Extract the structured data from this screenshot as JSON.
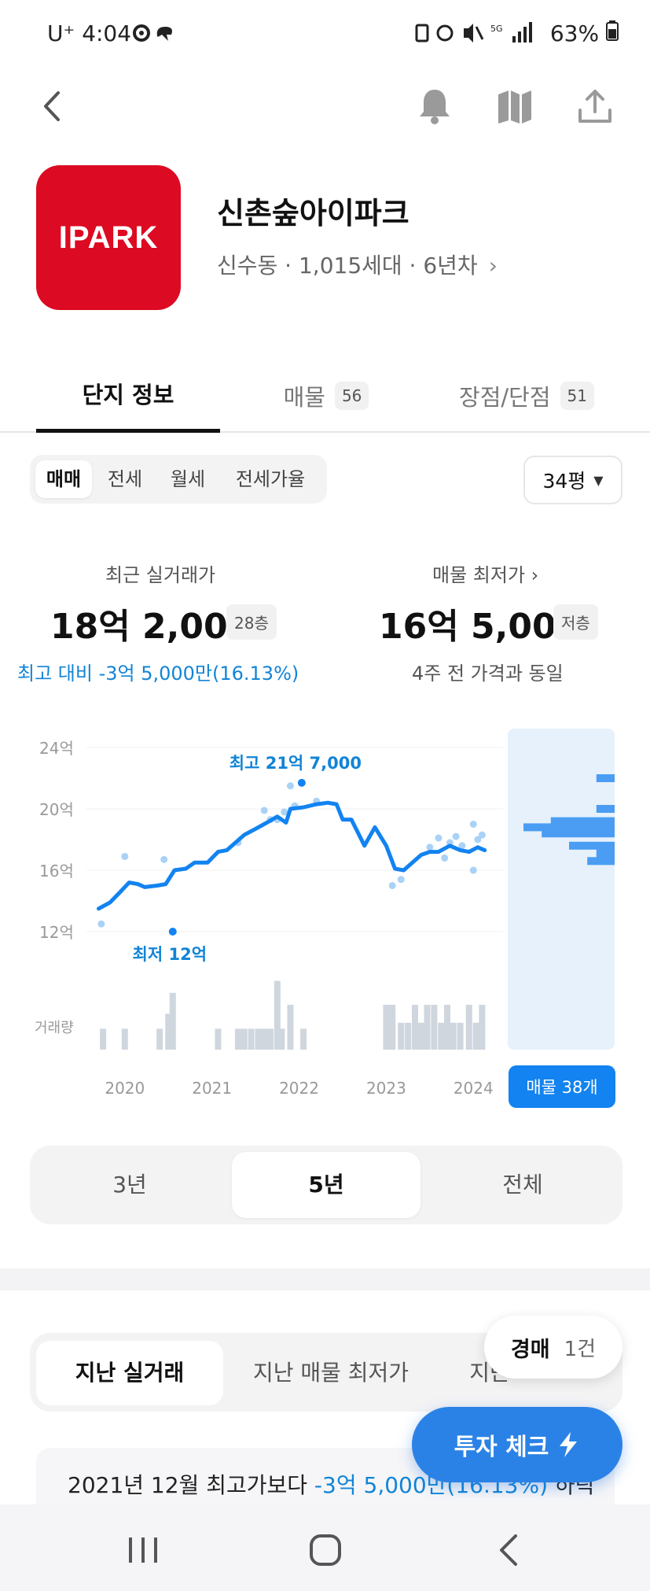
{
  "status_bar": {
    "carrier": "U⁺",
    "time": "4:04",
    "battery": "63%"
  },
  "header": {
    "back_icon": "chevron-left-icon",
    "icons": [
      "bell-icon",
      "map-icon",
      "share-icon"
    ]
  },
  "complex": {
    "logo_text": "IPARK",
    "logo_color": "#dc0a22",
    "name": "신촌숲아이파크",
    "subtitle": "신수동 · 1,015세대 · 6년차",
    "chevron": "›"
  },
  "tabs": [
    {
      "label": "단지 정보",
      "badge": ""
    },
    {
      "label": "매물",
      "badge": "56"
    },
    {
      "label": "장점/단점",
      "badge": "51"
    }
  ],
  "deal_types": [
    "매매",
    "전세",
    "월세",
    "전세가율"
  ],
  "size_select": "34평",
  "summary": {
    "recent": {
      "label": "최근 실거래가",
      "price": "18억 2,000",
      "floor": "28층"
    },
    "lowest": {
      "label": "매물 최저가 ›",
      "price": "16억 5,000",
      "floor": "저층"
    },
    "diff_text": "최고 대비 -3억 5,000만(16.13%)",
    "same_text": "4주 전 가격과 동일"
  },
  "chart": {
    "y_ticks": [
      "24억",
      "20억",
      "16억",
      "12억"
    ],
    "volume_label": "거래량",
    "x_ticks": [
      "2020",
      "2021",
      "2022",
      "2023",
      "2024"
    ],
    "high_label": "최고 21억 7,000",
    "low_label": "최저 12억",
    "listing_button": "매물 38개",
    "accent": "#1283f0"
  },
  "chart_data": {
    "type": "line",
    "ylim": [
      10,
      25
    ],
    "y_unit": "억",
    "x_range": [
      2019.7,
      2024.3
    ],
    "trend": [
      [
        2019.75,
        13.5
      ],
      [
        2019.88,
        13.9
      ],
      [
        2020.0,
        14.6
      ],
      [
        2020.1,
        15.2
      ],
      [
        2020.2,
        15.1
      ],
      [
        2020.28,
        14.9
      ],
      [
        2020.42,
        15.0
      ],
      [
        2020.52,
        15.1
      ],
      [
        2020.62,
        16.0
      ],
      [
        2020.75,
        16.1
      ],
      [
        2020.85,
        16.5
      ],
      [
        2021.0,
        16.5
      ],
      [
        2021.12,
        17.2
      ],
      [
        2021.22,
        17.3
      ],
      [
        2021.32,
        17.8
      ],
      [
        2021.42,
        18.3
      ],
      [
        2021.55,
        18.7
      ],
      [
        2021.68,
        19.1
      ],
      [
        2021.8,
        19.5
      ],
      [
        2021.9,
        19.1
      ],
      [
        2021.95,
        20.0
      ],
      [
        2022.1,
        20.1
      ],
      [
        2022.25,
        20.3
      ],
      [
        2022.38,
        20.4
      ],
      [
        2022.48,
        20.3
      ],
      [
        2022.55,
        19.3
      ],
      [
        2022.65,
        19.3
      ],
      [
        2022.8,
        17.6
      ],
      [
        2022.92,
        18.8
      ],
      [
        2023.05,
        17.6
      ],
      [
        2023.15,
        16.1
      ],
      [
        2023.25,
        16.0
      ],
      [
        2023.35,
        16.5
      ],
      [
        2023.45,
        17.0
      ],
      [
        2023.55,
        17.2
      ],
      [
        2023.65,
        17.2
      ],
      [
        2023.78,
        17.6
      ],
      [
        2023.9,
        17.3
      ],
      [
        2024.0,
        17.2
      ],
      [
        2024.1,
        17.5
      ],
      [
        2024.18,
        17.3
      ]
    ],
    "transactions": [
      [
        2019.78,
        12.5
      ],
      [
        2020.05,
        16.9
      ],
      [
        2020.5,
        16.7
      ],
      [
        2020.6,
        12.0
      ],
      [
        2021.35,
        17.8
      ],
      [
        2021.65,
        19.9
      ],
      [
        2021.72,
        19.3
      ],
      [
        2021.8,
        19.3
      ],
      [
        2021.88,
        19.8
      ],
      [
        2021.95,
        21.5
      ],
      [
        2022.0,
        20.2
      ],
      [
        2022.08,
        21.7
      ],
      [
        2022.25,
        20.5
      ],
      [
        2023.12,
        15.0
      ],
      [
        2023.22,
        15.4
      ],
      [
        2023.55,
        17.5
      ],
      [
        2023.65,
        18.1
      ],
      [
        2023.72,
        16.8
      ],
      [
        2023.78,
        17.8
      ],
      [
        2023.85,
        18.2
      ],
      [
        2023.92,
        17.6
      ],
      [
        2024.05,
        19.0
      ],
      [
        2024.05,
        16.0
      ],
      [
        2024.1,
        18.0
      ],
      [
        2024.15,
        18.3
      ]
    ],
    "high_point": [
      2022.08,
      21.7
    ],
    "low_point": [
      2020.6,
      12.0
    ],
    "volume": [
      [
        2019.8,
        0.35
      ],
      [
        2020.05,
        0.35
      ],
      [
        2020.45,
        0.35
      ],
      [
        2020.55,
        0.6
      ],
      [
        2020.6,
        0.95
      ],
      [
        2021.12,
        0.35
      ],
      [
        2021.35,
        0.35
      ],
      [
        2021.42,
        0.35
      ],
      [
        2021.5,
        0.35
      ],
      [
        2021.58,
        0.35
      ],
      [
        2021.65,
        0.35
      ],
      [
        2021.72,
        0.35
      ],
      [
        2021.8,
        1.15
      ],
      [
        2021.85,
        0.35
      ],
      [
        2021.95,
        0.75
      ],
      [
        2022.1,
        0.35
      ],
      [
        2023.05,
        0.75
      ],
      [
        2023.12,
        0.75
      ],
      [
        2023.22,
        0.45
      ],
      [
        2023.3,
        0.45
      ],
      [
        2023.38,
        0.75
      ],
      [
        2023.45,
        0.45
      ],
      [
        2023.52,
        0.75
      ],
      [
        2023.6,
        0.75
      ],
      [
        2023.68,
        0.45
      ],
      [
        2023.75,
        0.75
      ],
      [
        2023.82,
        0.45
      ],
      [
        2023.9,
        0.45
      ],
      [
        2024.0,
        0.75
      ],
      [
        2024.08,
        0.45
      ],
      [
        2024.15,
        0.75
      ]
    ],
    "listing_distribution": [
      [
        22.0,
        0.2
      ],
      [
        20.0,
        0.2
      ],
      [
        19.2,
        0.7
      ],
      [
        18.8,
        1.0
      ],
      [
        18.4,
        0.8
      ],
      [
        17.6,
        0.5
      ],
      [
        17.1,
        0.2
      ],
      [
        16.6,
        0.3
      ]
    ]
  },
  "periods": [
    "3년",
    "5년",
    "전체"
  ],
  "history_tabs": [
    "지난 실거래",
    "지난 매물 최저가",
    "지난"
  ],
  "auction": {
    "label": "경매",
    "count": "1건"
  },
  "note": {
    "prefix": "2021년 12월 최고가보다 ",
    "highlight": "-3억 5,000만(16.13%)",
    "suffix": " 하락"
  },
  "invest_button": "투자 체크"
}
